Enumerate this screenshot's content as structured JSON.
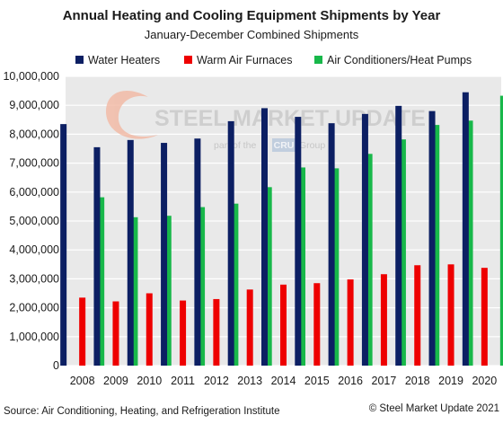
{
  "chart_data": {
    "type": "bar",
    "title": "Annual Heating and Cooling Equipment Shipments by Year",
    "subtitle": "January-December Combined Shipments",
    "xlabel": "",
    "ylabel": "",
    "categories": [
      "2008",
      "2009",
      "2010",
      "2011",
      "2012",
      "2013",
      "2014",
      "2015",
      "2016",
      "2017",
      "2018",
      "2019",
      "2020"
    ],
    "ylim": [
      0,
      10000000
    ],
    "yticks": [
      0,
      1000000,
      2000000,
      3000000,
      4000000,
      5000000,
      6000000,
      7000000,
      8000000,
      9000000,
      10000000
    ],
    "ytick_labels": [
      "0",
      "1,000,000",
      "2,000,000",
      "3,000,000",
      "4,000,000",
      "5,000,000",
      "6,000,000",
      "7,000,000",
      "8,000,000",
      "9,000,000",
      "10,000,000"
    ],
    "grid": true,
    "legend_position": "top",
    "series": [
      {
        "name": "Water Heaters",
        "color": "#0c1f63",
        "values": [
          8350000,
          7550000,
          7800000,
          7700000,
          7850000,
          8450000,
          8900000,
          8600000,
          8380000,
          8700000,
          8980000,
          8800000,
          9450000
        ]
      },
      {
        "name": "Warm Air Furnaces",
        "color": "#ee0000",
        "values": [
          2350000,
          2220000,
          2500000,
          2250000,
          2300000,
          2630000,
          2800000,
          2850000,
          2980000,
          3160000,
          3470000,
          3500000,
          3380000
        ]
      },
      {
        "name": "Air Conditioners/Heat Pumps",
        "color": "#18b84a",
        "values": [
          5820000,
          5130000,
          5180000,
          5480000,
          5600000,
          6170000,
          6850000,
          6820000,
          7320000,
          7820000,
          8320000,
          8470000,
          9330000
        ]
      }
    ],
    "source": "Source: Air Conditioning, Heating, and Refrigeration Institute",
    "copyright": "© Steel Market Update 2021"
  },
  "watermark": {
    "brand": "STEEL MARKET UPDATE",
    "tagline_pre": "part of the",
    "tagline_logo": "CRU",
    "tagline_post": "Group",
    "swoosh_color": "#f2b8a2"
  }
}
